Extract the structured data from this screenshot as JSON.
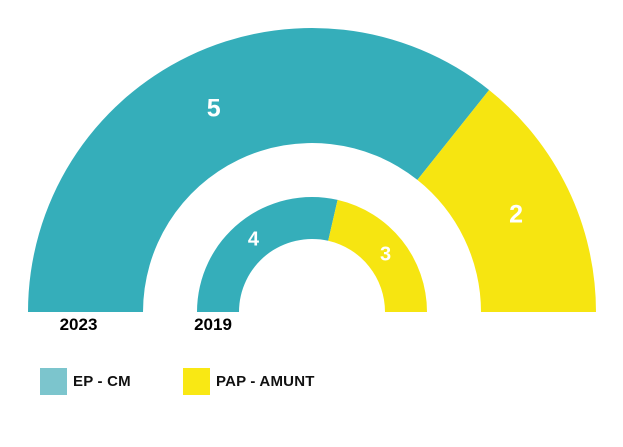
{
  "chart_data": {
    "type": "pie",
    "subtype": "nested-semicircle-donut",
    "title": "",
    "unit": "seats",
    "categories": [
      "2023",
      "2019"
    ],
    "rings": [
      {
        "year": "2023",
        "total": 7,
        "segments": [
          {
            "party": "EP - CM",
            "value": 5
          },
          {
            "party": "PAP - AMUNT",
            "value": 2
          }
        ]
      },
      {
        "year": "2019",
        "total": 7,
        "segments": [
          {
            "party": "EP - CM",
            "value": 4
          },
          {
            "party": "PAP - AMUNT",
            "value": 3
          }
        ]
      }
    ],
    "legend": [
      {
        "label": "EP - CM",
        "color": "#35AEBA",
        "swatch_color": "#7CC5CD"
      },
      {
        "label": "PAP - AMUNT",
        "color": "#F6E511",
        "swatch_color": "#F9E814"
      }
    ],
    "legend_position": "bottom-left",
    "value_label_color": "#FFFFFF",
    "year_label_color": "#000000",
    "background_color": "#FFFFFF"
  }
}
